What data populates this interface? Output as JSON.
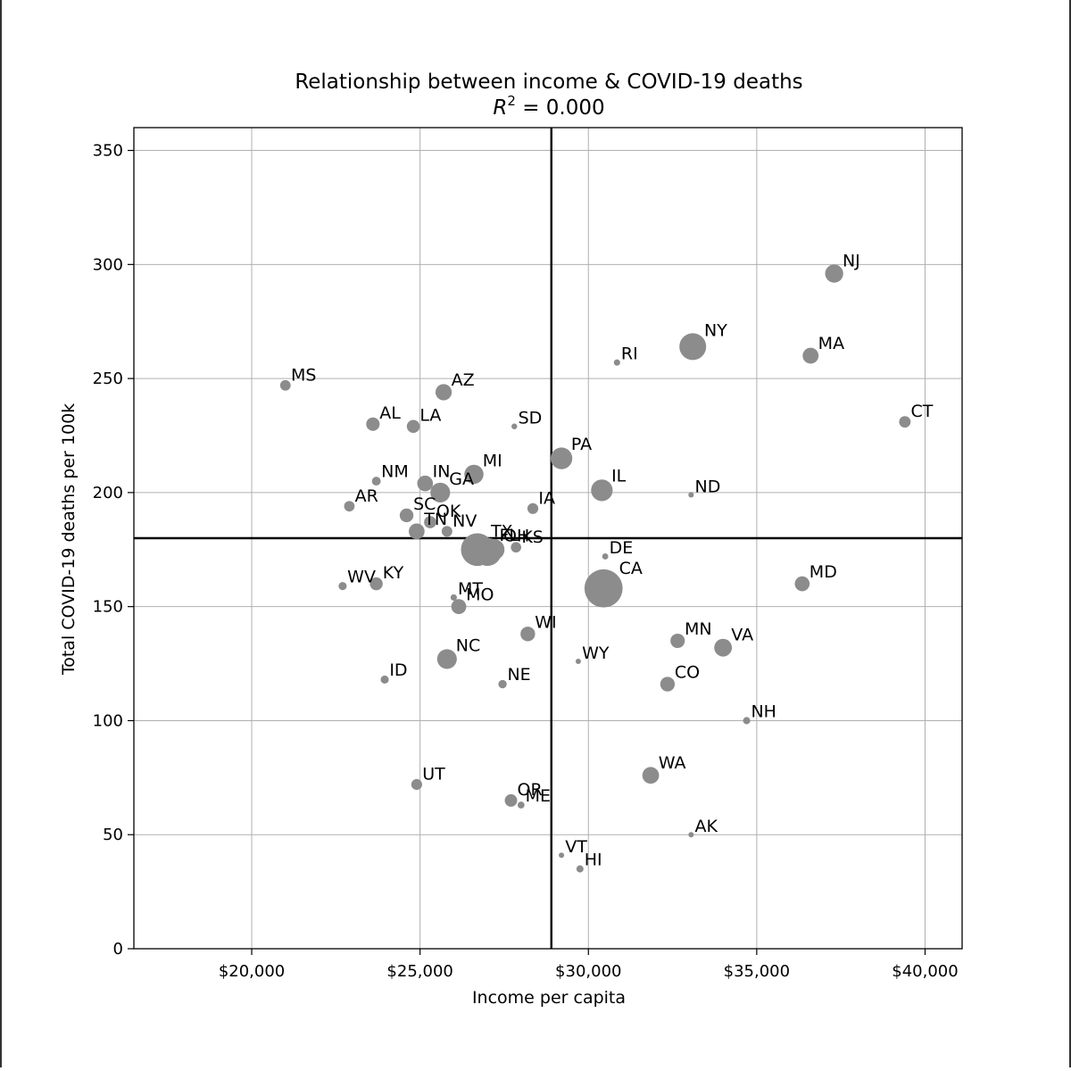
{
  "chart_data": {
    "type": "scatter",
    "title": "Relationship between income & COVID-19 deaths",
    "subtitle_prefix": "R",
    "subtitle_superscript": "2",
    "subtitle_suffix": " = 0.000",
    "xlabel": "Income per capita",
    "ylabel": "Total COVID-19 deaths per 100k",
    "xlim": [
      16500,
      41100
    ],
    "ylim": [
      0,
      360
    ],
    "xticks": [
      20000,
      25000,
      30000,
      35000,
      40000
    ],
    "xtick_labels": [
      "$20,000",
      "$25,000",
      "$30,000",
      "$35,000",
      "$40,000"
    ],
    "yticks": [
      0,
      50,
      100,
      150,
      200,
      250,
      300,
      350
    ],
    "ytick_labels": [
      "0",
      "50",
      "100",
      "150",
      "200",
      "250",
      "300",
      "350"
    ],
    "grid": true,
    "reference_lines": {
      "x": 28900,
      "y": 180
    },
    "marker_color": "#8c8c8c",
    "point_size_meaning": "state population (relative)",
    "points": [
      {
        "label": "NJ",
        "x": 37300,
        "y": 296,
        "size": 8.9
      },
      {
        "label": "NY",
        "x": 33100,
        "y": 264,
        "size": 19.5
      },
      {
        "label": "MA",
        "x": 36600,
        "y": 260,
        "size": 6.9
      },
      {
        "label": "RI",
        "x": 30850,
        "y": 257,
        "size": 1.1
      },
      {
        "label": "MS",
        "x": 21000,
        "y": 247,
        "size": 3.0
      },
      {
        "label": "AZ",
        "x": 25700,
        "y": 244,
        "size": 7.2
      },
      {
        "label": "CT",
        "x": 39400,
        "y": 231,
        "size": 3.6
      },
      {
        "label": "AL",
        "x": 23600,
        "y": 230,
        "size": 4.9
      },
      {
        "label": "LA",
        "x": 24800,
        "y": 229,
        "size": 4.6
      },
      {
        "label": "SD",
        "x": 27800,
        "y": 229,
        "size": 0.9
      },
      {
        "label": "PA",
        "x": 29200,
        "y": 215,
        "size": 12.8
      },
      {
        "label": "MI",
        "x": 26600,
        "y": 208,
        "size": 10.0
      },
      {
        "label": "NM",
        "x": 23700,
        "y": 205,
        "size": 2.1
      },
      {
        "label": "IN",
        "x": 25150,
        "y": 204,
        "size": 6.7
      },
      {
        "label": "IL",
        "x": 30400,
        "y": 201,
        "size": 12.7
      },
      {
        "label": "GA",
        "x": 25600,
        "y": 200,
        "size": 10.6
      },
      {
        "label": "ND",
        "x": 33050,
        "y": 199,
        "size": 0.8
      },
      {
        "label": "AR",
        "x": 22900,
        "y": 194,
        "size": 3.0
      },
      {
        "label": "IA",
        "x": 28350,
        "y": 193,
        "size": 3.2
      },
      {
        "label": "SC",
        "x": 24600,
        "y": 190,
        "size": 5.1
      },
      {
        "label": "OK",
        "x": 25300,
        "y": 187,
        "size": 4.0
      },
      {
        "label": "TN",
        "x": 24900,
        "y": 183,
        "size": 6.8
      },
      {
        "label": "NV",
        "x": 25800,
        "y": 183,
        "size": 3.1
      },
      {
        "label": "TX",
        "x": 26700,
        "y": 175,
        "size": 29.0
      },
      {
        "label": "FL",
        "x": 27000,
        "y": 174,
        "size": 21.5
      },
      {
        "label": "OH",
        "x": 27200,
        "y": 175,
        "size": 11.7
      },
      {
        "label": "KS",
        "x": 27850,
        "y": 176,
        "size": 2.9
      },
      {
        "label": "DE",
        "x": 30500,
        "y": 172,
        "size": 1.0
      },
      {
        "label": "MD",
        "x": 36350,
        "y": 160,
        "size": 6.0
      },
      {
        "label": "WV",
        "x": 22700,
        "y": 159,
        "size": 1.8
      },
      {
        "label": "KY",
        "x": 23700,
        "y": 160,
        "size": 4.5
      },
      {
        "label": "CA",
        "x": 30450,
        "y": 158,
        "size": 39.5
      },
      {
        "label": "MT",
        "x": 26000,
        "y": 154,
        "size": 1.1
      },
      {
        "label": "MO",
        "x": 26150,
        "y": 150,
        "size": 6.1
      },
      {
        "label": "WI",
        "x": 28200,
        "y": 138,
        "size": 5.8
      },
      {
        "label": "MN",
        "x": 32650,
        "y": 135,
        "size": 5.6
      },
      {
        "label": "VA",
        "x": 34000,
        "y": 132,
        "size": 8.5
      },
      {
        "label": "NC",
        "x": 25800,
        "y": 127,
        "size": 10.5
      },
      {
        "label": "WY",
        "x": 29700,
        "y": 126,
        "size": 0.6
      },
      {
        "label": "ID",
        "x": 23950,
        "y": 118,
        "size": 1.8
      },
      {
        "label": "NE",
        "x": 27450,
        "y": 116,
        "size": 1.9
      },
      {
        "label": "CO",
        "x": 32350,
        "y": 116,
        "size": 5.8
      },
      {
        "label": "NH",
        "x": 34700,
        "y": 100,
        "size": 1.4
      },
      {
        "label": "WA",
        "x": 31850,
        "y": 76,
        "size": 7.6
      },
      {
        "label": "UT",
        "x": 24900,
        "y": 72,
        "size": 3.2
      },
      {
        "label": "OR",
        "x": 27700,
        "y": 65,
        "size": 4.2
      },
      {
        "label": "ME",
        "x": 28000,
        "y": 63,
        "size": 1.3
      },
      {
        "label": "AK",
        "x": 33050,
        "y": 50,
        "size": 0.7
      },
      {
        "label": "VT",
        "x": 29200,
        "y": 41,
        "size": 0.6
      },
      {
        "label": "HI",
        "x": 29750,
        "y": 35,
        "size": 1.4
      }
    ]
  }
}
